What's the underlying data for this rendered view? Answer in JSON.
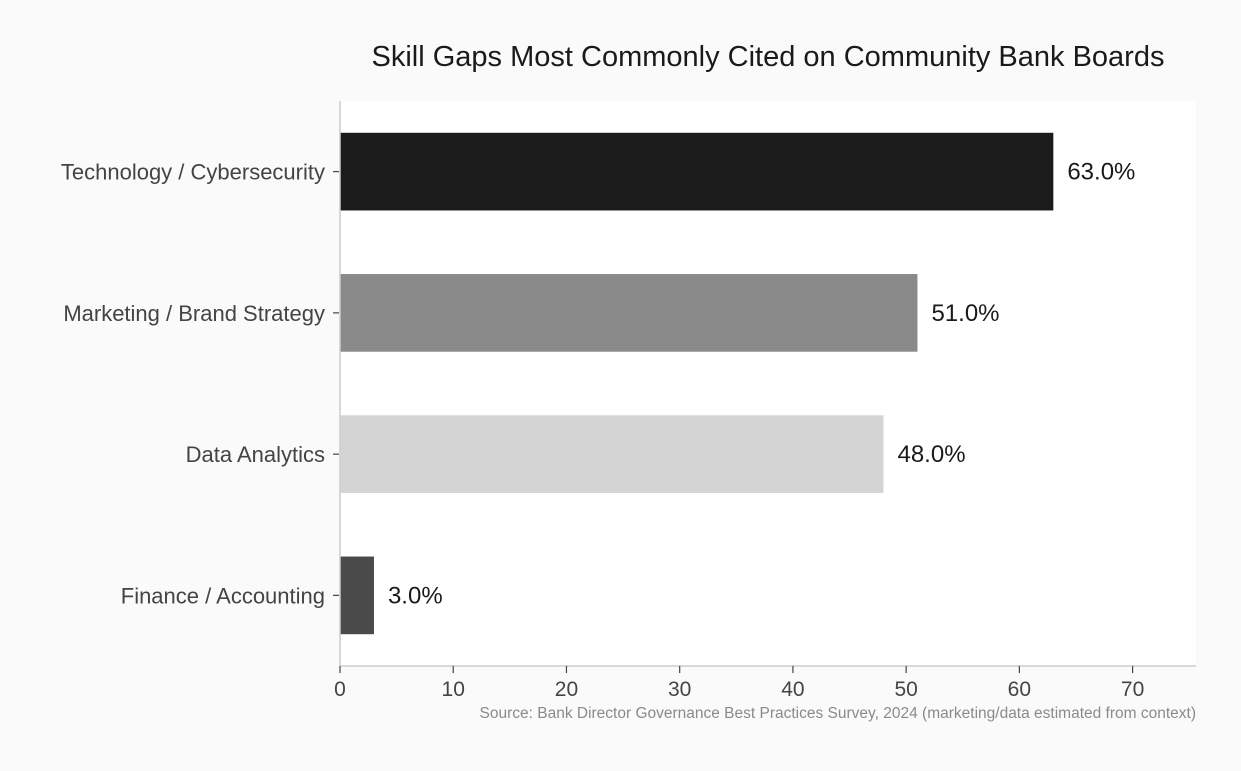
{
  "chart_data": {
    "type": "bar",
    "orientation": "horizontal",
    "title": "Skill Gaps Most Commonly Cited on Community Bank Boards",
    "xlabel": "",
    "ylabel": "",
    "categories": [
      "Technology / Cybersecurity",
      "Marketing / Brand Strategy",
      "Data Analytics",
      "Finance / Accounting"
    ],
    "values": [
      63.0,
      51.0,
      48.0,
      3.0
    ],
    "value_labels": [
      "63.0%",
      "51.0%",
      "48.0%",
      "3.0%"
    ],
    "bar_colors": [
      "#1b1b1b",
      "#8a8a8a",
      "#d4d4d4",
      "#4a4a4a"
    ],
    "xlim": [
      0,
      75.6
    ],
    "xticks": [
      0,
      10,
      20,
      30,
      40,
      50,
      60,
      70
    ],
    "grid": false,
    "legend": "none",
    "plot_background": "#ffffff",
    "page_background": "#fafafa",
    "source": "Source: Bank Director Governance Best Practices Survey, 2024 (marketing/data estimated from context)"
  }
}
